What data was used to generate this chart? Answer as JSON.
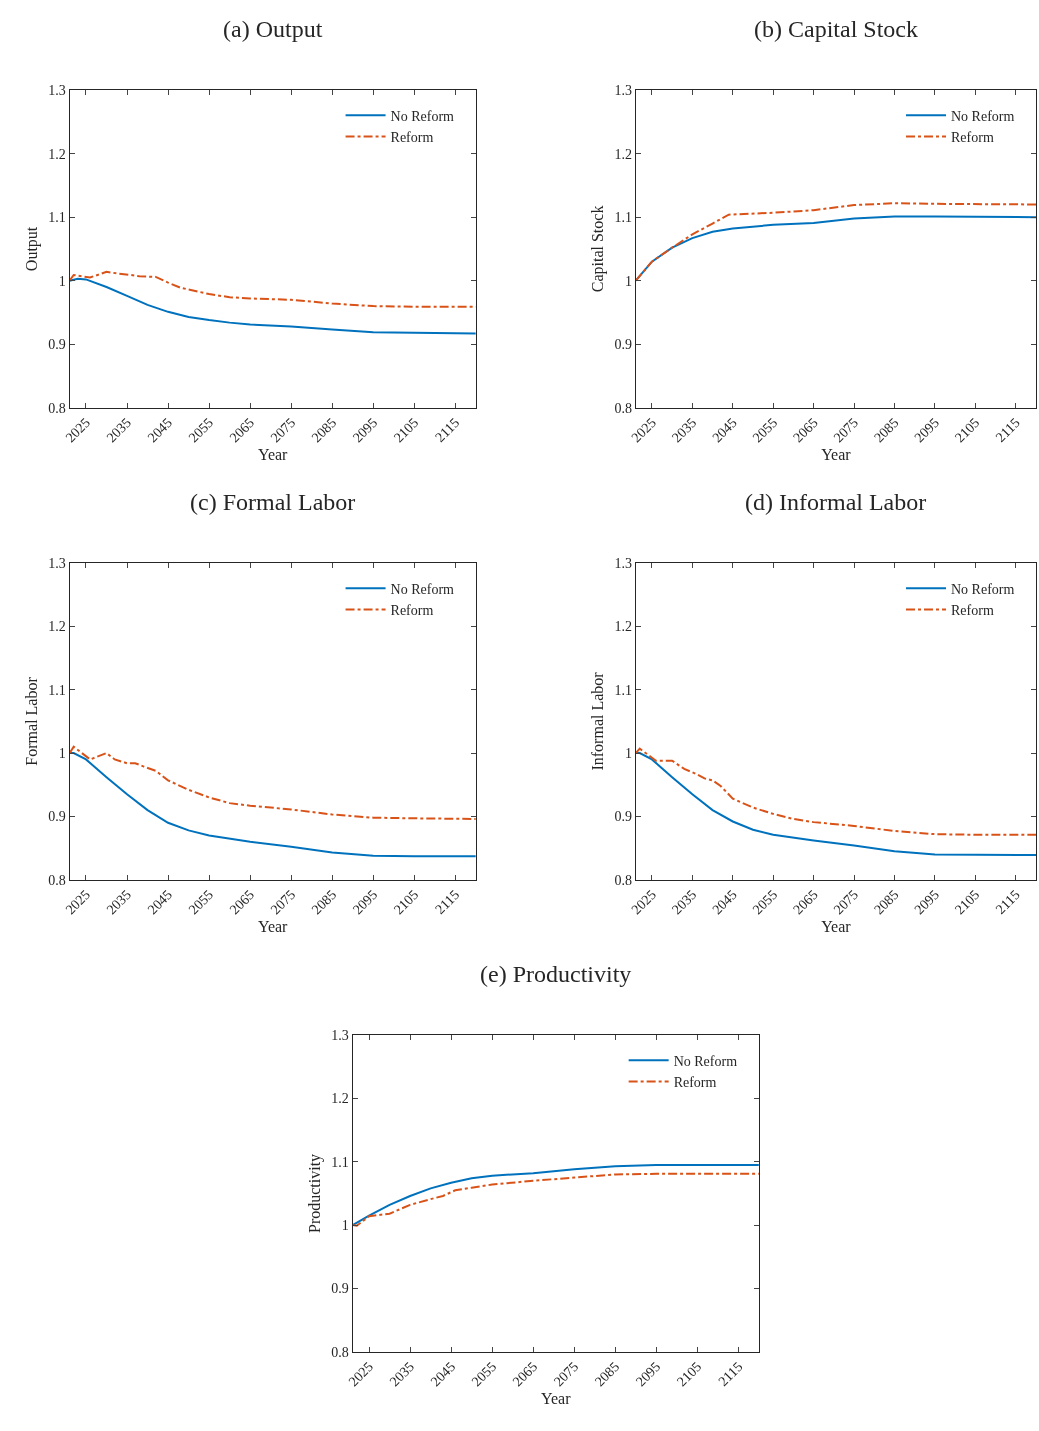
{
  "chart_data": [
    {
      "type": "line",
      "title": "(a) Output",
      "xlabel": "Year",
      "ylabel": "Output",
      "xlim": [
        2021,
        2120
      ],
      "xticks": [
        2025,
        2035,
        2045,
        2055,
        2065,
        2075,
        2085,
        2095,
        2105,
        2115
      ],
      "ylim": [
        0.8,
        1.3
      ],
      "yticks": [
        0.8,
        0.9,
        1,
        1.1,
        1.2,
        1.3
      ],
      "legend": "top right",
      "marker": "none",
      "series": [
        {
          "name": "No Reform",
          "color": "#0072bd",
          "line_style": "solid",
          "x": [
            2021,
            2023,
            2025,
            2030,
            2035,
            2040,
            2045,
            2050,
            2055,
            2060,
            2065,
            2075,
            2085,
            2095,
            2105,
            2120
          ],
          "values": [
            1.0,
            1.003,
            1.002,
            0.99,
            0.976,
            0.962,
            0.951,
            0.943,
            0.938,
            0.934,
            0.931,
            0.928,
            0.923,
            0.919,
            0.918,
            0.917
          ]
        },
        {
          "name": "Reform",
          "color": "#d95319",
          "line_style": "dashed",
          "x": [
            2021,
            2022,
            2026,
            2030,
            2033,
            2036,
            2038,
            2042,
            2045,
            2048,
            2055,
            2060,
            2065,
            2075,
            2085,
            2095,
            2105,
            2120
          ],
          "values": [
            1.0,
            1.009,
            1.005,
            1.014,
            1.011,
            1.009,
            1.007,
            1.006,
            0.997,
            0.989,
            0.979,
            0.974,
            0.972,
            0.97,
            0.964,
            0.96,
            0.959,
            0.959
          ]
        }
      ]
    },
    {
      "type": "line",
      "title": "(b) Capital Stock",
      "xlabel": "Year",
      "ylabel": "Capital Stock",
      "xlim": [
        2021,
        2120
      ],
      "xticks": [
        2025,
        2035,
        2045,
        2055,
        2065,
        2075,
        2085,
        2095,
        2105,
        2115
      ],
      "ylim": [
        0.8,
        1.3
      ],
      "yticks": [
        0.8,
        0.9,
        1,
        1.1,
        1.2,
        1.3
      ],
      "legend": "top right",
      "marker": "none",
      "series": [
        {
          "name": "No Reform",
          "color": "#0072bd",
          "line_style": "solid",
          "x": [
            2021,
            2025,
            2030,
            2035,
            2040,
            2045,
            2055,
            2065,
            2075,
            2085,
            2095,
            2120
          ],
          "values": [
            1.0,
            1.03,
            1.052,
            1.067,
            1.077,
            1.082,
            1.088,
            1.091,
            1.098,
            1.101,
            1.101,
            1.1
          ]
        },
        {
          "name": "Reform",
          "color": "#d95319",
          "line_style": "dashed",
          "x": [
            2021,
            2025,
            2030,
            2035,
            2040,
            2044,
            2055,
            2065,
            2075,
            2085,
            2095,
            2120
          ],
          "values": [
            1.0,
            1.03,
            1.052,
            1.073,
            1.09,
            1.104,
            1.107,
            1.111,
            1.119,
            1.122,
            1.121,
            1.12
          ]
        }
      ]
    },
    {
      "type": "line",
      "title": "(c) Formal Labor",
      "xlabel": "Year",
      "ylabel": "Formal Labor",
      "xlim": [
        2021,
        2120
      ],
      "xticks": [
        2025,
        2035,
        2045,
        2055,
        2065,
        2075,
        2085,
        2095,
        2105,
        2115
      ],
      "ylim": [
        0.8,
        1.3
      ],
      "yticks": [
        0.8,
        0.9,
        1,
        1.1,
        1.2,
        1.3
      ],
      "legend": "top right",
      "marker": "none",
      "series": [
        {
          "name": "No Reform",
          "color": "#0072bd",
          "line_style": "solid",
          "x": [
            2021,
            2022,
            2025,
            2030,
            2035,
            2040,
            2045,
            2050,
            2055,
            2065,
            2075,
            2085,
            2095,
            2105,
            2120
          ],
          "values": [
            1.0,
            1.0,
            0.99,
            0.962,
            0.935,
            0.91,
            0.89,
            0.878,
            0.87,
            0.86,
            0.852,
            0.843,
            0.838,
            0.837,
            0.837
          ]
        },
        {
          "name": "Reform",
          "color": "#d95319",
          "line_style": "dashed",
          "x": [
            2021,
            2022,
            2026,
            2030,
            2032,
            2035,
            2037,
            2039,
            2042,
            2045,
            2050,
            2055,
            2060,
            2065,
            2075,
            2085,
            2095,
            2105,
            2120
          ],
          "values": [
            1.0,
            1.01,
            0.99,
            1.0,
            0.99,
            0.984,
            0.984,
            0.979,
            0.972,
            0.957,
            0.942,
            0.93,
            0.921,
            0.917,
            0.911,
            0.903,
            0.898,
            0.897,
            0.896
          ]
        }
      ]
    },
    {
      "type": "line",
      "title": "(d) Informal Labor",
      "xlabel": "Year",
      "ylabel": "Informal Labor",
      "xlim": [
        2021,
        2120
      ],
      "xticks": [
        2025,
        2035,
        2045,
        2055,
        2065,
        2075,
        2085,
        2095,
        2105,
        2115
      ],
      "ylim": [
        0.8,
        1.3
      ],
      "yticks": [
        0.8,
        0.9,
        1,
        1.1,
        1.2,
        1.3
      ],
      "legend": "top right",
      "marker": "none",
      "series": [
        {
          "name": "No Reform",
          "color": "#0072bd",
          "line_style": "solid",
          "x": [
            2021,
            2022,
            2025,
            2030,
            2035,
            2040,
            2045,
            2050,
            2055,
            2065,
            2075,
            2085,
            2095,
            2120
          ],
          "values": [
            1.0,
            1.0,
            0.99,
            0.962,
            0.935,
            0.91,
            0.892,
            0.879,
            0.871,
            0.862,
            0.854,
            0.845,
            0.84,
            0.839
          ]
        },
        {
          "name": "Reform",
          "color": "#d95319",
          "line_style": "dashed",
          "x": [
            2021,
            2022,
            2026,
            2030,
            2033,
            2036,
            2038,
            2040,
            2042,
            2045,
            2050,
            2055,
            2060,
            2065,
            2075,
            2085,
            2095,
            2105,
            2120
          ],
          "values": [
            1.0,
            1.007,
            0.988,
            0.988,
            0.975,
            0.967,
            0.96,
            0.957,
            0.948,
            0.928,
            0.914,
            0.904,
            0.896,
            0.891,
            0.885,
            0.877,
            0.872,
            0.871,
            0.871
          ]
        }
      ]
    },
    {
      "type": "line",
      "title": "(e) Productivity",
      "xlabel": "Year",
      "ylabel": "Productivity",
      "xlim": [
        2021,
        2120
      ],
      "xticks": [
        2025,
        2035,
        2045,
        2055,
        2065,
        2075,
        2085,
        2095,
        2105,
        2115
      ],
      "ylim": [
        0.8,
        1.3
      ],
      "yticks": [
        0.8,
        0.9,
        1,
        1.1,
        1.2,
        1.3
      ],
      "legend": "top right",
      "marker": "none",
      "series": [
        {
          "name": "No Reform",
          "color": "#0072bd",
          "line_style": "solid",
          "x": [
            2021,
            2025,
            2030,
            2035,
            2040,
            2045,
            2050,
            2055,
            2065,
            2075,
            2085,
            2095,
            2120
          ],
          "values": [
            1.0,
            1.015,
            1.032,
            1.046,
            1.058,
            1.067,
            1.074,
            1.078,
            1.082,
            1.088,
            1.093,
            1.095,
            1.095
          ]
        },
        {
          "name": "Reform",
          "color": "#d95319",
          "line_style": "dashed",
          "x": [
            2021,
            2022,
            2025,
            2030,
            2035,
            2040,
            2043,
            2046,
            2050,
            2055,
            2065,
            2075,
            2085,
            2095,
            2120
          ],
          "values": [
            1.0,
            0.999,
            1.014,
            1.018,
            1.032,
            1.041,
            1.046,
            1.055,
            1.059,
            1.064,
            1.07,
            1.075,
            1.08,
            1.081,
            1.081
          ]
        }
      ]
    }
  ]
}
